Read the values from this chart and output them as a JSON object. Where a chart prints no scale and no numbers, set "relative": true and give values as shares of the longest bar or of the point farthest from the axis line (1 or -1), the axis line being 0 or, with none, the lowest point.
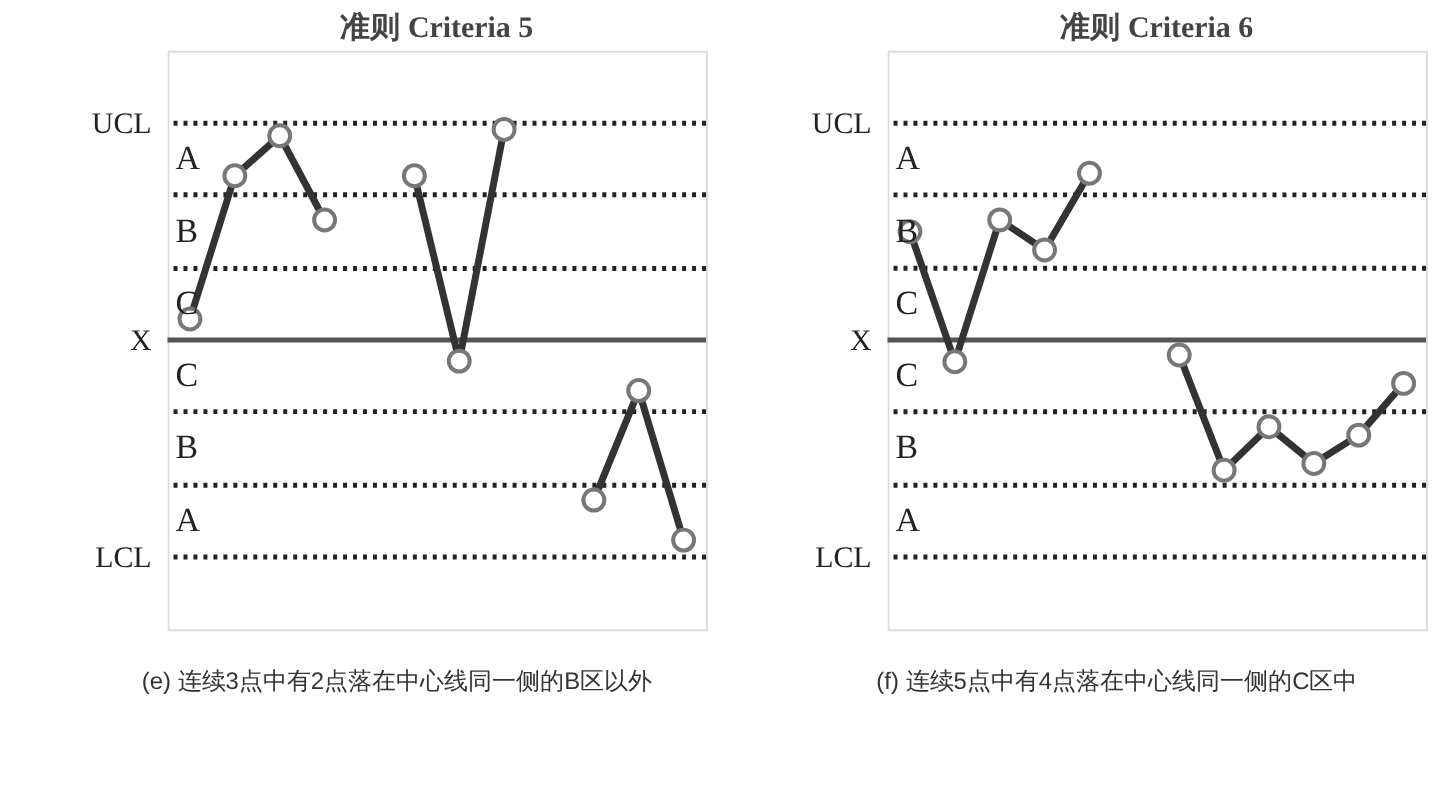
{
  "chart_data": [
    {
      "type": "line",
      "title": "准则 Criteria 5",
      "relative": true,
      "categories": [
        null,
        null,
        null,
        null,
        null,
        null,
        null,
        null,
        null,
        null,
        null,
        null
      ],
      "series": [
        {
          "color": "#333333",
          "values": [
            0.1,
            0.78,
            0.97,
            0.57,
            null,
            null,
            null,
            null,
            null,
            null,
            null,
            null
          ]
        },
        {
          "color": "#333333",
          "values": [
            null,
            null,
            null,
            null,
            null,
            0.78,
            -0.1,
            1,
            null,
            null,
            null,
            null
          ]
        },
        {
          "color": "#333333",
          "values": [
            null,
            null,
            null,
            null,
            null,
            null,
            null,
            null,
            null,
            -0.76,
            -0.24,
            -0.95
          ]
        }
      ],
      "marker": "circle",
      "line_style": "solid",
      "grid": false,
      "ref_lines": [
        {
          "axis": "y",
          "value": 1.03,
          "label": "UCL",
          "line_style": "dotted",
          "color": "#222222"
        },
        {
          "axis": "y",
          "value": 0.69,
          "line_style": "dotted",
          "color": "#222222"
        },
        {
          "axis": "y",
          "value": 0.34,
          "line_style": "dotted",
          "color": "#222222"
        },
        {
          "axis": "y",
          "value": 0,
          "label": "X",
          "line_style": "solid",
          "color": "#555555"
        },
        {
          "axis": "y",
          "value": -0.34,
          "line_style": "dotted",
          "color": "#222222"
        },
        {
          "axis": "y",
          "value": -0.69,
          "line_style": "dotted",
          "color": "#222222"
        },
        {
          "axis": "y",
          "value": -1.03,
          "label": "LCL",
          "line_style": "dotted",
          "color": "#222222"
        }
      ],
      "annotations": [
        "A",
        "B",
        "C",
        "C",
        "B",
        "A",
        "(e) 连续3点中有2点落在中心线同一侧的B区以外"
      ]
    },
    {
      "type": "line",
      "title": "准则 Criteria 6",
      "relative": true,
      "categories": [
        null,
        null,
        null,
        null,
        null,
        null,
        null,
        null,
        null,
        null,
        null,
        null
      ],
      "series": [
        {
          "color": "#333333",
          "values": [
            0.65,
            -0.13,
            0.72,
            0.54,
            1,
            null,
            null,
            null,
            null,
            null,
            null,
            null
          ]
        },
        {
          "color": "#333333",
          "values": [
            null,
            null,
            null,
            null,
            null,
            null,
            -0.09,
            -0.78,
            -0.52,
            -0.74,
            -0.57,
            -0.26
          ]
        }
      ],
      "marker": "circle",
      "line_style": "solid",
      "grid": false,
      "ref_lines": [
        {
          "axis": "y",
          "value": 1.3,
          "label": "UCL",
          "line_style": "dotted",
          "color": "#222222"
        },
        {
          "axis": "y",
          "value": 0.87,
          "line_style": "dotted",
          "color": "#222222"
        },
        {
          "axis": "y",
          "value": 0.43,
          "line_style": "dotted",
          "color": "#222222"
        },
        {
          "axis": "y",
          "value": 0,
          "label": "X",
          "line_style": "solid",
          "color": "#555555"
        },
        {
          "axis": "y",
          "value": -0.43,
          "line_style": "dotted",
          "color": "#222222"
        },
        {
          "axis": "y",
          "value": -0.87,
          "line_style": "dotted",
          "color": "#222222"
        },
        {
          "axis": "y",
          "value": -1.3,
          "label": "LCL",
          "line_style": "dotted",
          "color": "#222222"
        }
      ],
      "annotations": [
        "A",
        "B",
        "C",
        "C",
        "B",
        "A",
        "(f) 连续5点中有4点落在中心线同一侧的C区中"
      ]
    }
  ]
}
